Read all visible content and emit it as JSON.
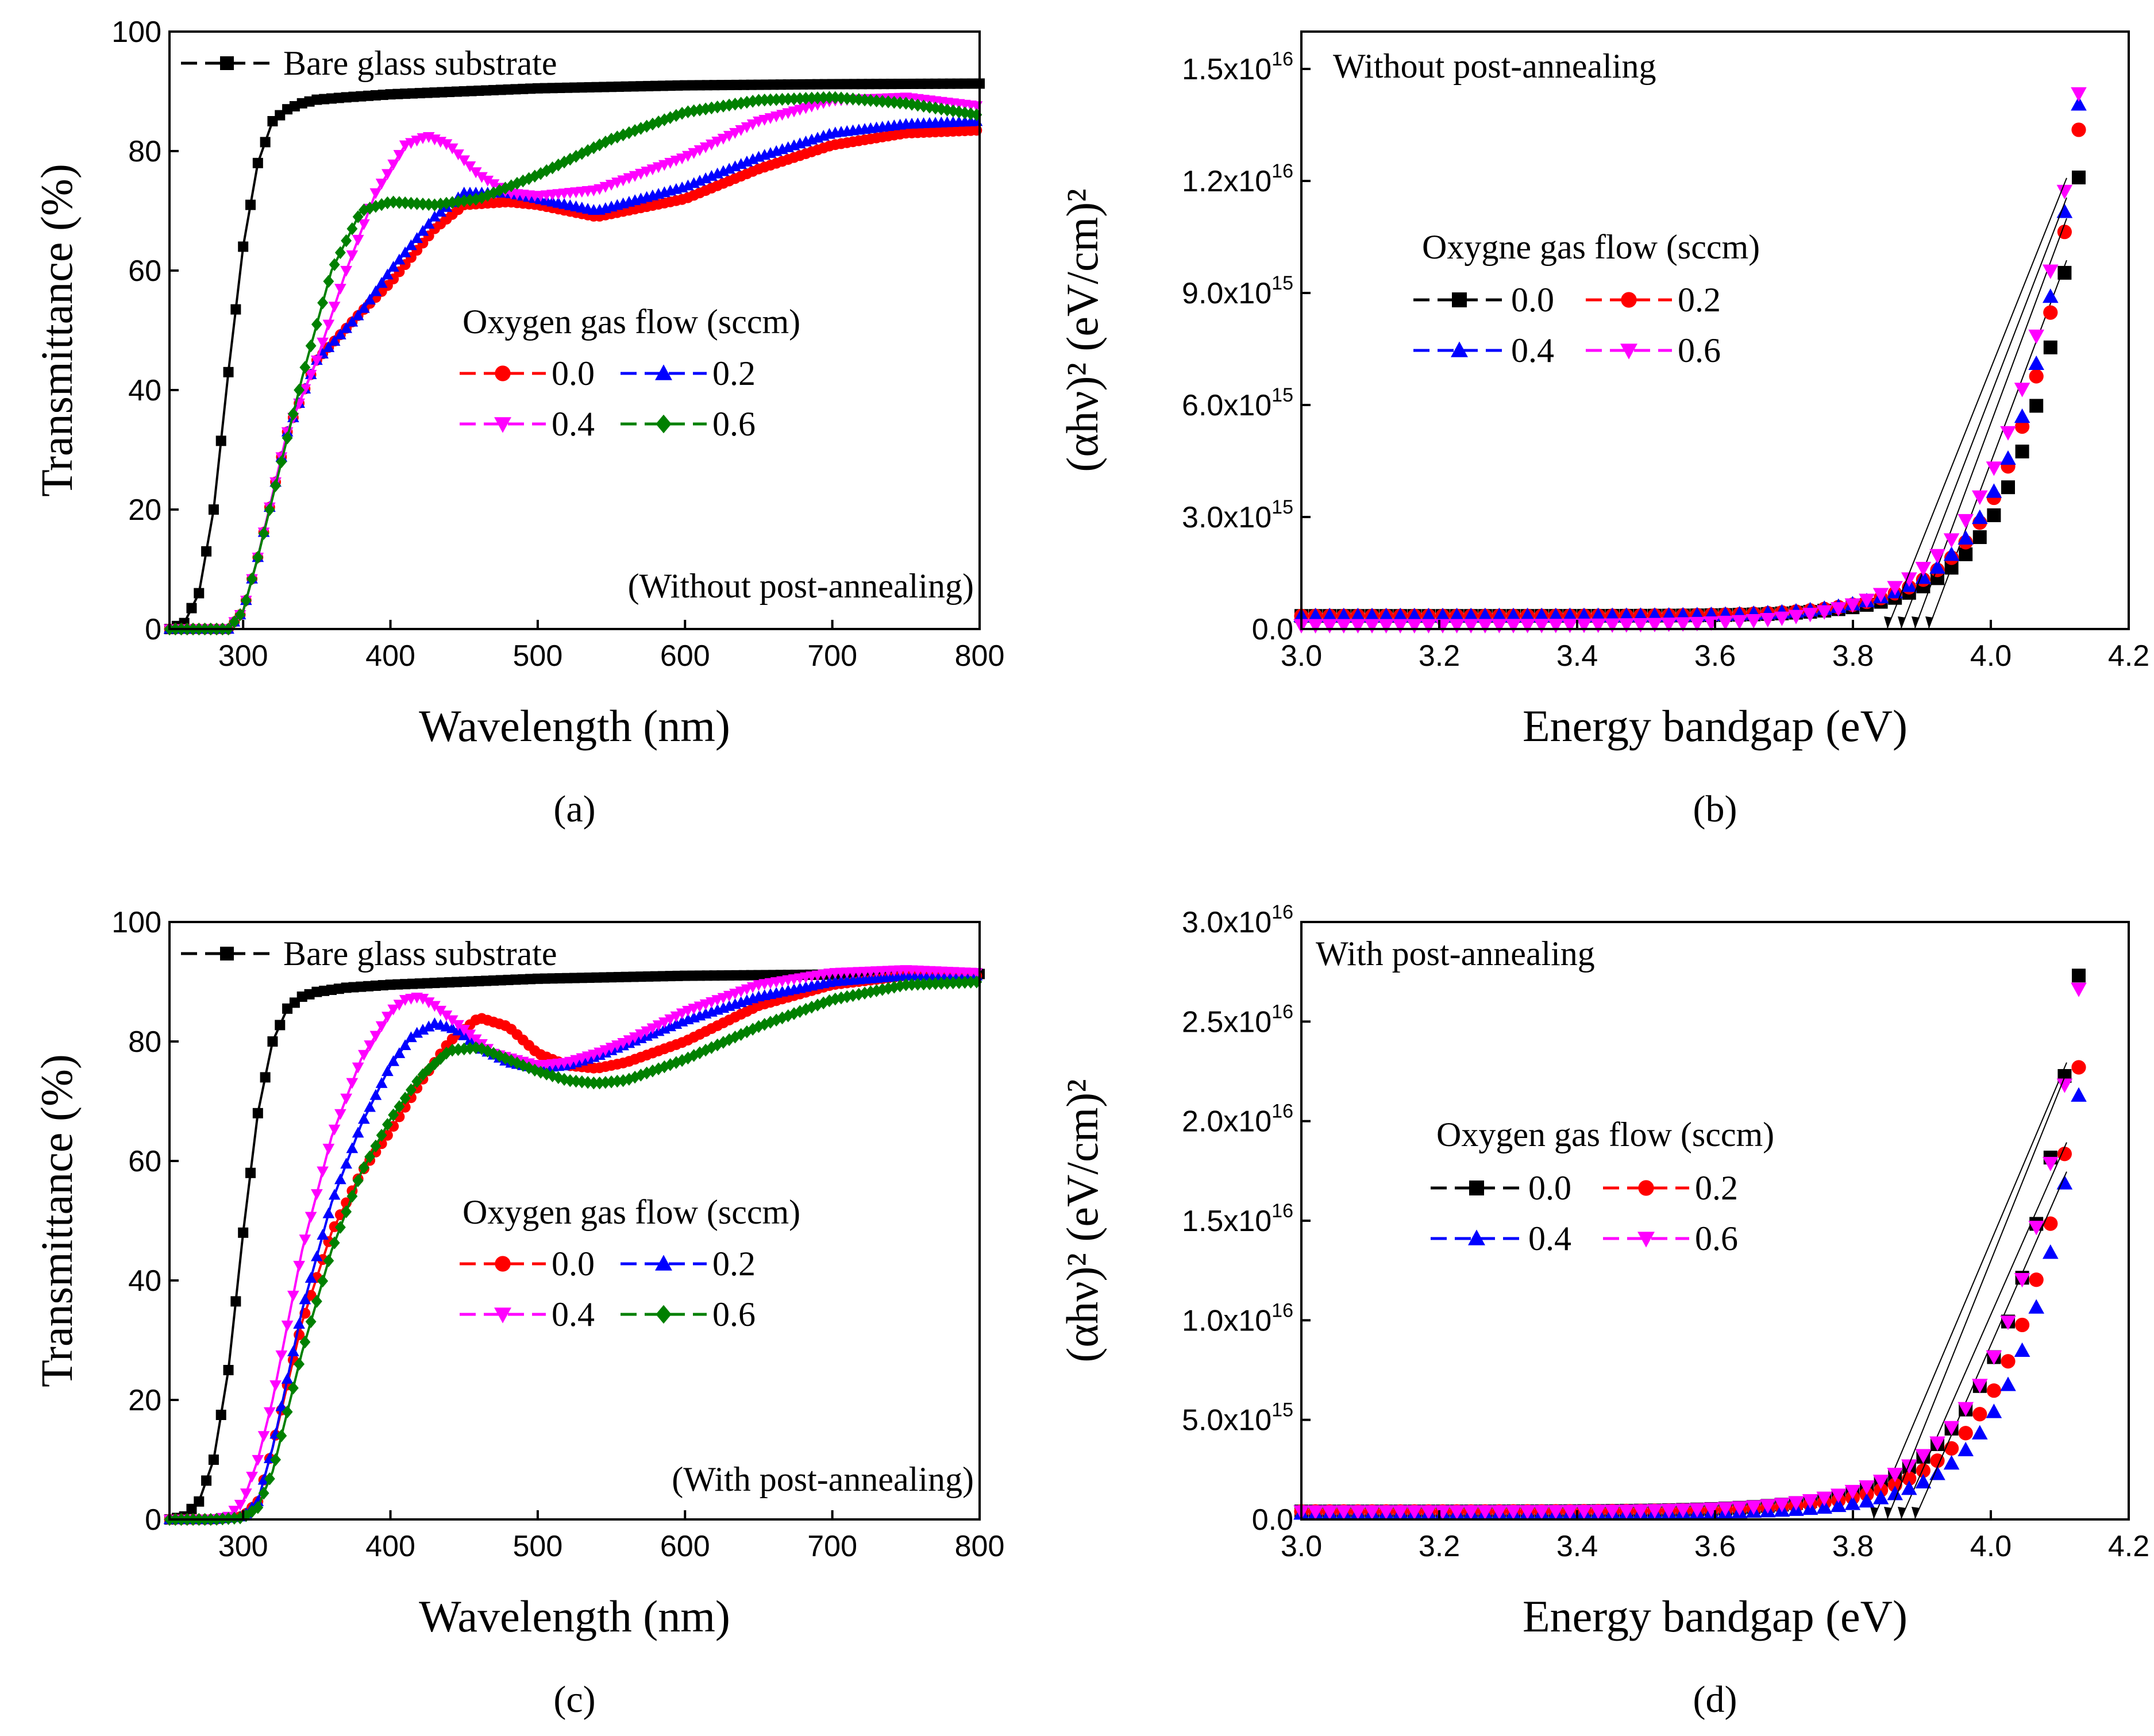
{
  "chart_data": [
    {
      "id": "a",
      "type": "line",
      "caption": "(a)",
      "xlabel": "Wavelength (nm)",
      "ylabel": "Transmittance (%)",
      "xlim": [
        250,
        800
      ],
      "ylim": [
        0,
        100
      ],
      "xticks": [
        300,
        400,
        500,
        600,
        700,
        800
      ],
      "yticks": [
        0,
        20,
        40,
        60,
        80,
        100
      ],
      "annotation": "(Without post-annealing)",
      "reference": {
        "name": "Bare glass substrate",
        "color": "#000000",
        "marker": "square",
        "x": [
          250,
          260,
          270,
          280,
          290,
          300,
          310,
          320,
          330,
          340,
          350,
          370,
          400,
          450,
          500,
          600,
          700,
          800
        ],
        "y": [
          0,
          1,
          6,
          20,
          43,
          64,
          78,
          85,
          87,
          88,
          88.6,
          89,
          89.5,
          90,
          90.5,
          91,
          91.2,
          91.3
        ]
      },
      "legend_title": "Oxygen gas flow (sccm)",
      "series": [
        {
          "name": "0.0",
          "color": "#ff0000",
          "marker": "circle",
          "x": [
            250,
            270,
            290,
            300,
            310,
            330,
            350,
            380,
            400,
            430,
            450,
            480,
            500,
            540,
            600,
            650,
            700,
            750,
            800
          ],
          "y": [
            0,
            0,
            0,
            3,
            12,
            33,
            45,
            53,
            58,
            67,
            71,
            71.5,
            71,
            69,
            72,
            77,
            81,
            83,
            83.5
          ]
        },
        {
          "name": "0.2",
          "color": "#0000ff",
          "marker": "triangle-up",
          "x": [
            250,
            270,
            290,
            300,
            310,
            330,
            350,
            380,
            400,
            430,
            450,
            480,
            500,
            540,
            600,
            650,
            700,
            750,
            800
          ],
          "y": [
            0,
            0,
            0,
            3,
            12,
            33,
            45,
            53,
            60,
            69,
            73,
            73,
            72,
            70,
            74,
            79,
            83,
            84.5,
            85
          ]
        },
        {
          "name": "0.4",
          "color": "#ff00ff",
          "marker": "triangle-down",
          "x": [
            250,
            270,
            290,
            300,
            310,
            330,
            350,
            370,
            390,
            410,
            425,
            440,
            460,
            480,
            500,
            540,
            600,
            650,
            700,
            750,
            800
          ],
          "y": [
            0,
            0,
            0,
            3,
            12,
            33,
            45,
            60,
            73,
            81,
            82.5,
            81,
            76,
            73,
            72.5,
            73.5,
            79,
            85,
            88.5,
            89,
            87.5
          ]
        },
        {
          "name": "0.6",
          "color": "#008000",
          "marker": "diamond",
          "x": [
            250,
            270,
            290,
            300,
            310,
            320,
            340,
            360,
            380,
            400,
            430,
            460,
            500,
            550,
            600,
            650,
            700,
            750,
            800
          ],
          "y": [
            0,
            0,
            0,
            3,
            12,
            22,
            42,
            60,
            70,
            71.5,
            71,
            72,
            76,
            82,
            86.5,
            88.5,
            89,
            88,
            86
          ]
        }
      ]
    },
    {
      "id": "b",
      "type": "scatter",
      "caption": "(b)",
      "xlabel": "Energy bandgap (eV)",
      "ylabel": "(αhν)² (eV/cm)²",
      "xlim": [
        3.0,
        4.2
      ],
      "ylim": [
        0,
        1.6e+16
      ],
      "xticks": [
        3.0,
        3.2,
        3.4,
        3.6,
        3.8,
        4.0,
        4.2
      ],
      "xtick_labels": [
        "3.0",
        "3.2",
        "3.4",
        "3.6",
        "3.8",
        "4.0",
        "4.2"
      ],
      "yticks": [
        0,
        3000000000000000.0,
        6000000000000000.0,
        9000000000000000.0,
        1.2e+16,
        1.5e+16
      ],
      "ytick_labels": [
        {
          "m": "0.0",
          "e": ""
        },
        {
          "m": "3.0x10",
          "e": "15"
        },
        {
          "m": "6.0x10",
          "e": "15"
        },
        {
          "m": "9.0x10",
          "e": "15"
        },
        {
          "m": "1.2x10",
          "e": "16"
        },
        {
          "m": "1.5x10",
          "e": "16"
        }
      ],
      "annotation": "Without post-annealing",
      "legend_title": "Oxygne gas flow (sccm)",
      "series": [
        {
          "name": "0.0",
          "color": "#000000",
          "marker": "square",
          "scale": 1.21e+16,
          "k": 5.2,
          "base": 350000000000000.0,
          "intercept": 3.91
        },
        {
          "name": "0.2",
          "color": "#ff0000",
          "marker": "circle",
          "scale": 1.34e+16,
          "k": 5.0,
          "base": 350000000000000.0,
          "intercept": 3.89
        },
        {
          "name": "0.4",
          "color": "#0000ff",
          "marker": "triangle-up",
          "scale": 1.41e+16,
          "k": 5.0,
          "base": 350000000000000.0,
          "intercept": 3.87
        },
        {
          "name": "0.6",
          "color": "#ff00ff",
          "marker": "triangle-down",
          "scale": 1.46e+16,
          "k": 4.3,
          "base": 100000000000000.0,
          "intercept": 3.85
        }
      ],
      "x_start": 3.0,
      "x_end": 4.13,
      "x_step": 0.0205
    },
    {
      "id": "c",
      "type": "line",
      "caption": "(c)",
      "xlabel": "Wavelength (nm)",
      "ylabel": "Transmittance (%)",
      "xlim": [
        250,
        800
      ],
      "ylim": [
        0,
        100
      ],
      "xticks": [
        300,
        400,
        500,
        600,
        700,
        800
      ],
      "yticks": [
        0,
        20,
        40,
        60,
        80,
        100
      ],
      "annotation": "(With post-annealing)",
      "reference": {
        "name": "Bare glass substrate",
        "color": "#000000",
        "marker": "square",
        "x": [
          250,
          260,
          270,
          280,
          290,
          300,
          310,
          320,
          330,
          340,
          350,
          370,
          400,
          450,
          500,
          600,
          700,
          800
        ],
        "y": [
          0,
          0.5,
          3,
          10,
          25,
          48,
          68,
          80,
          85.5,
          87.5,
          88.3,
          89,
          89.5,
          90,
          90.5,
          91,
          91.2,
          91.3
        ]
      },
      "legend_title": "Oxygen gas flow (sccm)",
      "series": [
        {
          "name": "0.0",
          "color": "#ff0000",
          "marker": "circle",
          "x": [
            250,
            280,
            300,
            310,
            320,
            340,
            360,
            380,
            400,
            420,
            440,
            460,
            480,
            500,
            520,
            540,
            560,
            600,
            650,
            700,
            750,
            800
          ],
          "y": [
            0,
            0,
            0.5,
            3,
            12,
            33,
            48,
            58,
            65,
            73,
            80,
            84,
            82.5,
            78,
            76,
            75.5,
            76.5,
            80,
            86,
            89.5,
            91,
            91
          ]
        },
        {
          "name": "0.2",
          "color": "#0000ff",
          "marker": "triangle-up",
          "x": [
            250,
            280,
            300,
            310,
            320,
            340,
            360,
            380,
            400,
            415,
            430,
            445,
            460,
            480,
            500,
            520,
            540,
            560,
            600,
            650,
            700,
            750,
            800
          ],
          "y": [
            0,
            0,
            0.5,
            3,
            12,
            35,
            53,
            66,
            76,
            81,
            83,
            82,
            79,
            76.5,
            75.5,
            76,
            77.5,
            79.5,
            83.5,
            87.5,
            90,
            91,
            91
          ]
        },
        {
          "name": "0.4",
          "color": "#ff00ff",
          "marker": "triangle-down",
          "x": [
            250,
            280,
            290,
            300,
            310,
            320,
            340,
            360,
            380,
            400,
            410,
            420,
            430,
            450,
            470,
            500,
            520,
            540,
            560,
            600,
            650,
            700,
            750,
            800
          ],
          "y": [
            0,
            0,
            0.5,
            3,
            10,
            20,
            45,
            64,
            77,
            85,
            87,
            87.5,
            86,
            82,
            78,
            76,
            76.5,
            78,
            80,
            85,
            89.5,
            91.5,
            92,
            91.5
          ]
        },
        {
          "name": "0.6",
          "color": "#008000",
          "marker": "diamond",
          "x": [
            250,
            280,
            300,
            310,
            320,
            340,
            360,
            380,
            400,
            420,
            440,
            460,
            480,
            500,
            520,
            540,
            560,
            600,
            650,
            700,
            750,
            800
          ],
          "y": [
            0,
            0,
            0.3,
            2,
            8,
            28,
            45,
            58,
            67,
            74,
            78.5,
            79,
            77,
            75,
            73.5,
            73,
            73.5,
            77,
            82.5,
            87,
            89.5,
            90
          ]
        }
      ]
    },
    {
      "id": "d",
      "type": "scatter",
      "caption": "(d)",
      "xlabel": "Energy bandgap (eV)",
      "ylabel": "(αhν)² (eV/cm)²",
      "xlim": [
        3.0,
        4.2
      ],
      "ylim": [
        0,
        3e+16
      ],
      "xticks": [
        3.0,
        3.2,
        3.4,
        3.6,
        3.8,
        4.0,
        4.2
      ],
      "xtick_labels": [
        "3.0",
        "3.2",
        "3.4",
        "3.6",
        "3.8",
        "4.0",
        "4.2"
      ],
      "yticks": [
        0,
        5000000000000000.0,
        1e+16,
        1.5e+16,
        2e+16,
        2.5e+16,
        3e+16
      ],
      "ytick_labels": [
        {
          "m": "0.0",
          "e": ""
        },
        {
          "m": "5.0x10",
          "e": "15"
        },
        {
          "m": "1.0x10",
          "e": "16"
        },
        {
          "m": "1.5x10",
          "e": "16"
        },
        {
          "m": "2.0x10",
          "e": "16"
        },
        {
          "m": "2.5x10",
          "e": "16"
        },
        {
          "m": "3.0x10",
          "e": "16"
        }
      ],
      "annotation": "With post-annealing",
      "legend_title": "Oxygen gas flow (sccm)",
      "series": [
        {
          "name": "0.0",
          "color": "#000000",
          "marker": "square",
          "scale": 2.76e+16,
          "k": 4.4,
          "base": 400000000000000.0,
          "intercept": 3.83
        },
        {
          "name": "0.2",
          "color": "#ff0000",
          "marker": "circle",
          "scale": 2.29e+16,
          "k": 4.6,
          "base": 400000000000000.0,
          "intercept": 3.87
        },
        {
          "name": "0.4",
          "color": "#0000ff",
          "marker": "triangle-up",
          "scale": 2.16e+16,
          "k": 5.0,
          "base": 300000000000000.0,
          "intercept": 3.89
        },
        {
          "name": "0.6",
          "color": "#ff00ff",
          "marker": "triangle-down",
          "scale": 2.69e+16,
          "k": 4.3,
          "base": 400000000000000.0,
          "intercept": 3.85
        }
      ],
      "x_start": 3.0,
      "x_end": 4.13,
      "x_step": 0.0205
    }
  ]
}
